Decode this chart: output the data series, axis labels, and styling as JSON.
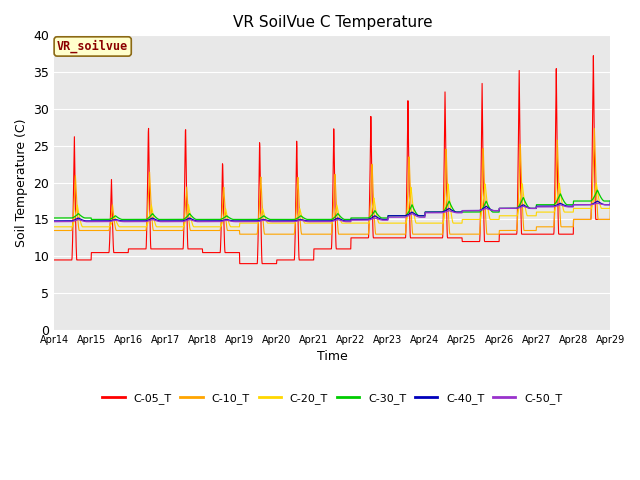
{
  "title": "VR SoilVue C Temperature",
  "xlabel": "Time",
  "ylabel": "Soil Temperature (C)",
  "ylim": [
    0,
    40
  ],
  "yticks": [
    0,
    5,
    10,
    15,
    20,
    25,
    30,
    35,
    40
  ],
  "x_labels": [
    "Apr 14",
    "Apr 15",
    "Apr 16",
    "Apr 17",
    "Apr 18",
    "Apr 19",
    "Apr 20",
    "Apr 21",
    "Apr 22",
    "Apr 23",
    "Apr 24",
    "Apr 25",
    "Apr 26",
    "Apr 27",
    "Apr 28",
    "Apr 29"
  ],
  "annotation_text": "VR_soilvue",
  "annotation_color": "#8B0000",
  "annotation_bg": "#FFFFCC",
  "annotation_border": "#8B6914",
  "bg_color": "#E8E8E8",
  "line_colors": {
    "C-05_T": "#FF0000",
    "C-10_T": "#FFA500",
    "C-20_T": "#FFD700",
    "C-30_T": "#00CC00",
    "C-40_T": "#0000BB",
    "C-50_T": "#9932CC"
  },
  "legend_labels": [
    "C-05_T",
    "C-10_T",
    "C-20_T",
    "C-30_T",
    "C-40_T",
    "C-50_T"
  ]
}
